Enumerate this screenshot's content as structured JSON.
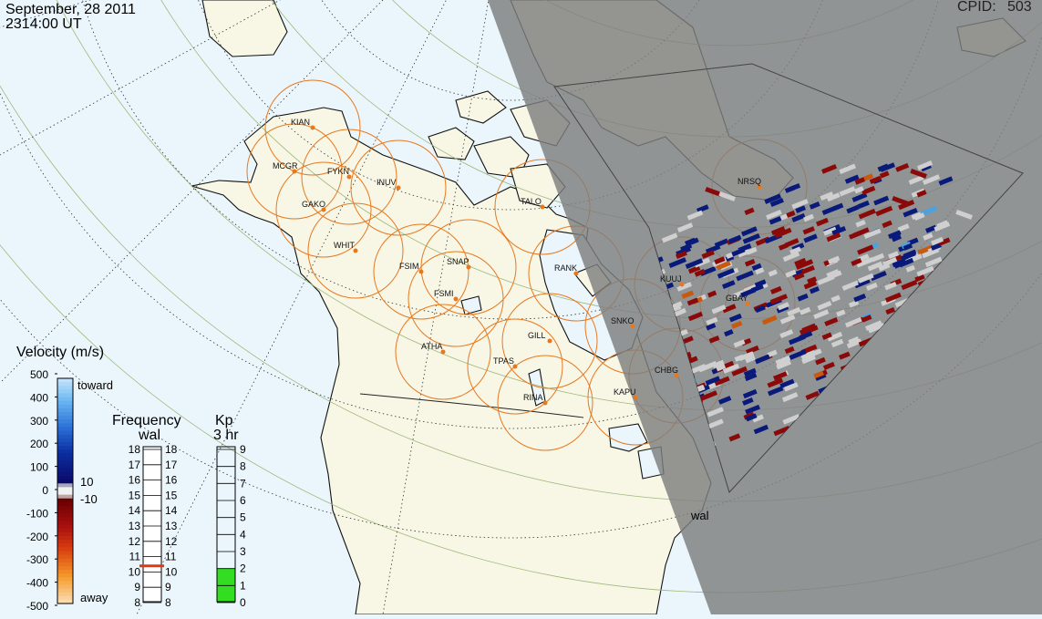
{
  "header": {
    "date": "September, 28 2011",
    "time": "2314:00 UT",
    "cpid_label": "CPID:",
    "cpid_value": "503"
  },
  "colors": {
    "ocean": "#eaf6fc",
    "land": "#f8f7e6",
    "night": "#959595",
    "fov_circle": "#e8781e",
    "station_dot": "#e8781e",
    "grid_dotted": "#333333",
    "grid_lat": "#9fb87a",
    "kp_fill": "#33dd22",
    "freq_marker": "#e03a10"
  },
  "stations": [
    "KIAN",
    "MCGR",
    "FYKN",
    "INUV",
    "GAKO",
    "WHIT",
    "FSIM",
    "SNAP",
    "FSMI",
    "TALO",
    "RANK",
    "ATHA",
    "GILL",
    "TPAS",
    "RINA",
    "KAPU",
    "CHBG",
    "SNKO",
    "KUUJ",
    "GBAY",
    "NRSQ"
  ],
  "scan_label": "wal",
  "velocity": {
    "title": "Velocity (m/s)",
    "ticks": [
      "500",
      "400",
      "300",
      "200",
      "100",
      "0",
      "-100",
      "-200",
      "-300",
      "-400",
      "-500"
    ],
    "toward": "toward",
    "away": "away",
    "threshold_pos": "10",
    "threshold_neg": "-10"
  },
  "frequency": {
    "title": "Frequency",
    "subtitle": "wal",
    "ticks": [
      "18",
      "17",
      "16",
      "15",
      "14",
      "13",
      "12",
      "11",
      "10",
      "9",
      "8"
    ],
    "current": 10.4
  },
  "kp": {
    "title": "Kp",
    "subtitle": "3 hr",
    "ticks": [
      "9",
      "8",
      "7",
      "6",
      "5",
      "4",
      "3",
      "2",
      "1",
      "0"
    ],
    "value": 2
  }
}
